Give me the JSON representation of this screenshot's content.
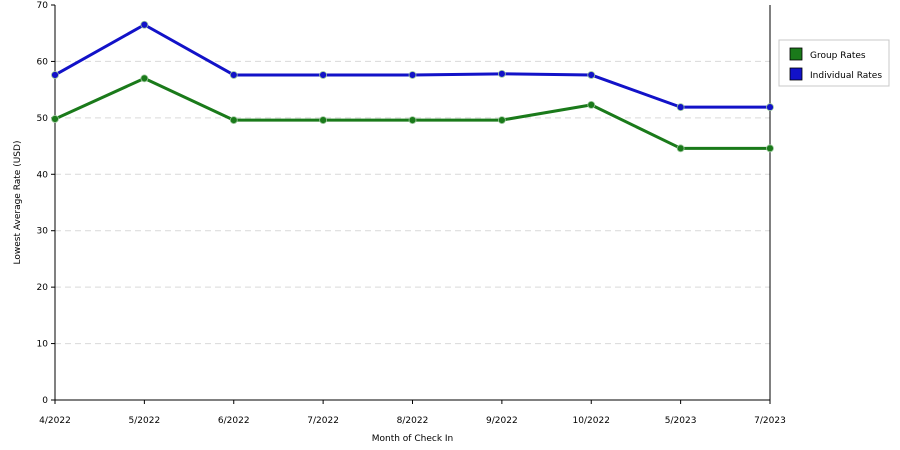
{
  "chart_data": {
    "type": "line",
    "title": "",
    "xlabel": "Month of Check In",
    "ylabel": "Lowest Average Rate (USD)",
    "categories": [
      "4/2022",
      "5/2022",
      "6/2022",
      "7/2022",
      "8/2022",
      "9/2022",
      "10/2022",
      "5/2023",
      "7/2023"
    ],
    "ylim": [
      0,
      70
    ],
    "yticks": [
      0,
      10,
      20,
      30,
      40,
      50,
      60,
      70
    ],
    "grid": true,
    "legend_position": "right",
    "series": [
      {
        "name": "Group Rates",
        "color": "#1a7a1a",
        "values": [
          49.8,
          57.0,
          49.6,
          49.6,
          49.6,
          49.6,
          52.3,
          44.6,
          44.6
        ]
      },
      {
        "name": "Individual Rates",
        "color": "#1212c8",
        "values": [
          57.6,
          66.5,
          57.6,
          57.6,
          57.6,
          57.8,
          57.6,
          51.9,
          51.9
        ]
      }
    ]
  }
}
